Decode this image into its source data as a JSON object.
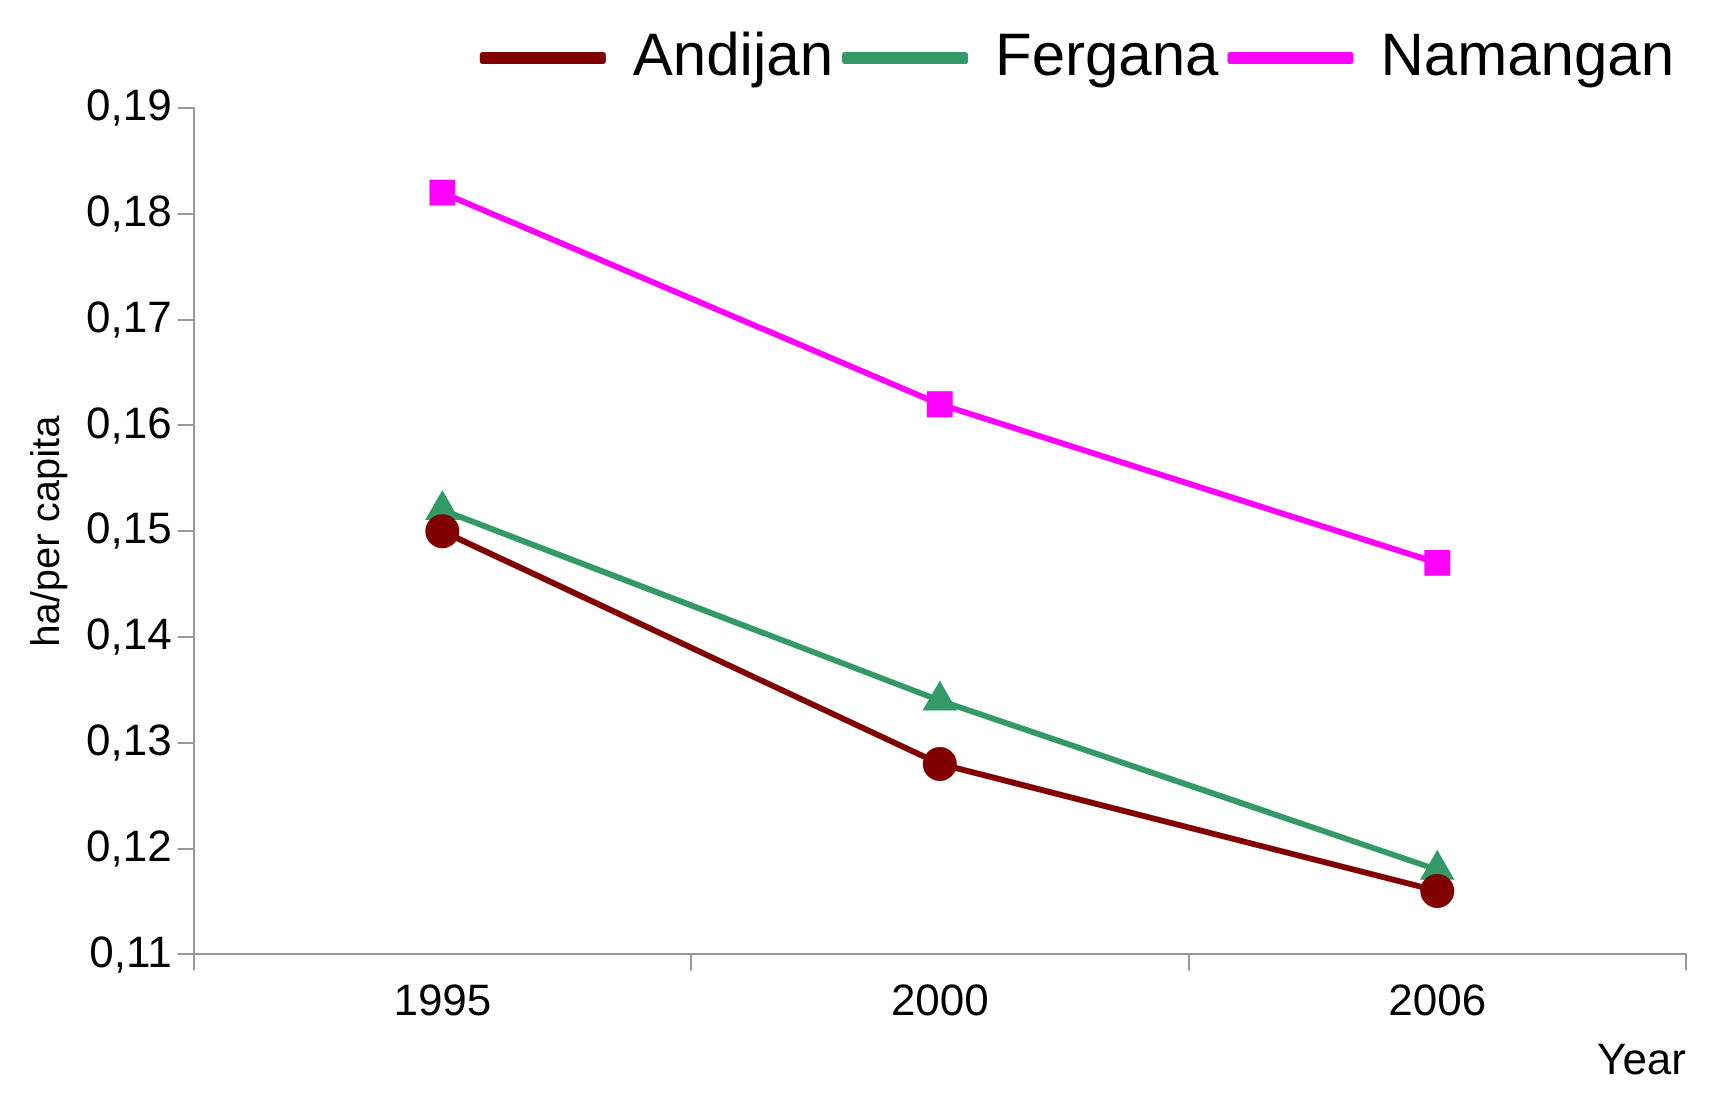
{
  "chart_data": {
    "type": "line",
    "xlabel": "Year",
    "ylabel": "ha/per capita",
    "categories": [
      "1995",
      "2000",
      "2006"
    ],
    "series": [
      {
        "name": "Andijan",
        "color": "#800000",
        "values": [
          0.15,
          0.128,
          0.116
        ],
        "marker": "circle"
      },
      {
        "name": "Fergana",
        "color": "#339966",
        "values": [
          0.152,
          0.134,
          0.118
        ],
        "marker": "triangle"
      },
      {
        "name": "Namangan",
        "color": "#ff00ff",
        "values": [
          0.182,
          0.162,
          0.147
        ],
        "marker": "square"
      }
    ],
    "ylim": [
      0.11,
      0.19
    ],
    "yticks": [
      {
        "value": 0.11,
        "label": "0,11"
      },
      {
        "value": 0.12,
        "label": "0,12"
      },
      {
        "value": 0.13,
        "label": "0,13"
      },
      {
        "value": 0.14,
        "label": "0,14"
      },
      {
        "value": 0.15,
        "label": "0,15"
      },
      {
        "value": 0.16,
        "label": "0,16"
      },
      {
        "value": 0.17,
        "label": "0,17"
      },
      {
        "value": 0.18,
        "label": "0,18"
      },
      {
        "value": 0.19,
        "label": "0,19"
      }
    ],
    "grid": false,
    "legend": "top",
    "line_style": "solid"
  }
}
